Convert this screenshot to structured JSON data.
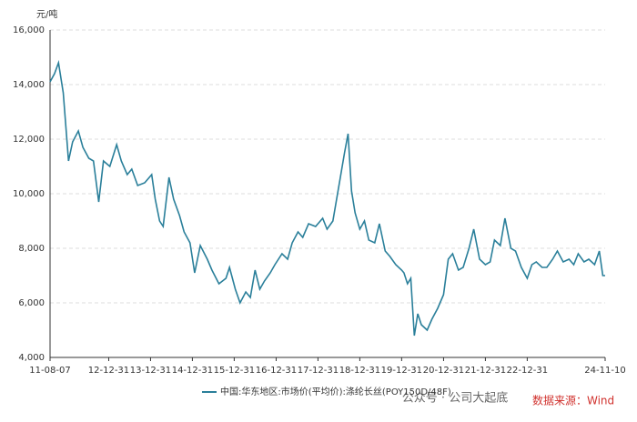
{
  "chart_data": {
    "type": "line",
    "y_axis_label": "元/吨",
    "xlim": [
      "11-08-07",
      "24-11-10"
    ],
    "xticks": [
      "11-08-07",
      "12-12-31",
      "13-12-31",
      "14-12-31",
      "15-12-31",
      "16-12-31",
      "17-12-31",
      "18-12-31",
      "19-12-31",
      "20-12-31",
      "21-12-31",
      "22-12-31",
      "24-11-10"
    ],
    "ylim": [
      4000,
      16000
    ],
    "yticks": [
      {
        "value": 4000,
        "label": "4,000"
      },
      {
        "value": 6000,
        "label": "6,000"
      },
      {
        "value": 8000,
        "label": "8,000"
      },
      {
        "value": 10000,
        "label": "10,000"
      },
      {
        "value": 12000,
        "label": "12,000"
      },
      {
        "value": 14000,
        "label": "14,000"
      },
      {
        "value": 16000,
        "label": "16,000"
      }
    ],
    "grid": true,
    "legend": "bottom",
    "x": [
      "11-08-07",
      "11-09-15",
      "11-10-20",
      "11-11-30",
      "12-01-15",
      "12-02-20",
      "12-04-10",
      "12-05-20",
      "12-07-10",
      "12-08-20",
      "12-10-05",
      "12-11-15",
      "13-01-10",
      "13-03-10",
      "13-04-20",
      "13-06-10",
      "13-07-20",
      "13-09-10",
      "13-11-10",
      "14-01-10",
      "14-02-10",
      "14-03-20",
      "14-04-20",
      "14-06-10",
      "14-07-20",
      "14-09-10",
      "14-10-20",
      "14-12-10",
      "15-01-20",
      "15-03-10",
      "15-05-10",
      "15-06-20",
      "15-08-20",
      "15-10-20",
      "15-11-20",
      "16-01-10",
      "16-02-20",
      "16-04-10",
      "16-05-20",
      "16-06-30",
      "16-08-10",
      "16-09-20",
      "16-11-10",
      "16-12-20",
      "17-02-20",
      "17-04-10",
      "17-05-20",
      "17-07-10",
      "17-08-20",
      "17-10-10",
      "17-12-10",
      "18-02-10",
      "18-03-20",
      "18-05-10",
      "18-07-10",
      "18-08-20",
      "18-09-20",
      "18-10-20",
      "18-11-20",
      "18-12-31",
      "19-02-10",
      "19-03-20",
      "19-05-10",
      "19-06-20",
      "19-08-10",
      "19-09-20",
      "19-11-10",
      "19-12-31",
      "20-01-20",
      "20-02-20",
      "20-03-20",
      "20-04-20",
      "20-05-20",
      "20-06-20",
      "20-08-10",
      "20-09-20",
      "20-11-10",
      "20-12-31",
      "21-02-10",
      "21-03-20",
      "21-05-10",
      "21-06-20",
      "21-08-10",
      "21-09-20",
      "21-11-10",
      "21-12-31",
      "22-02-10",
      "22-03-20",
      "22-05-10",
      "22-06-20",
      "22-08-10",
      "22-09-20",
      "22-11-10",
      "22-12-31",
      "23-02-10",
      "23-03-20",
      "23-05-10",
      "23-06-20",
      "23-08-10",
      "23-09-20",
      "23-11-10",
      "23-12-31",
      "24-02-10",
      "24-03-20",
      "24-05-10",
      "24-06-20",
      "24-08-10",
      "24-09-20",
      "24-10-20",
      "24-11-10"
    ],
    "series": [
      {
        "name": "中国:华东地区:市场价(平均价):涤纶长丝(POY150D/48F)",
        "color": "#2a7f9a",
        "values": [
          14100,
          14400,
          14800,
          13700,
          11200,
          11900,
          12300,
          11700,
          11300,
          11200,
          9700,
          11200,
          11000,
          11800,
          11200,
          10700,
          10900,
          10300,
          10400,
          10700,
          9800,
          9000,
          8800,
          10600,
          9800,
          9200,
          8600,
          8200,
          7100,
          8100,
          7600,
          7200,
          6700,
          6900,
          7300,
          6500,
          6000,
          6400,
          6200,
          7200,
          6500,
          6800,
          7100,
          7400,
          7800,
          7600,
          8200,
          8600,
          8400,
          8900,
          8800,
          9100,
          8700,
          9000,
          10500,
          11500,
          12200,
          10100,
          9300,
          8700,
          9000,
          8300,
          8200,
          8900,
          7900,
          7700,
          7400,
          7200,
          7100,
          6700,
          6900,
          4800,
          5600,
          5200,
          5000,
          5400,
          5800,
          6300,
          7600,
          7800,
          7200,
          7300,
          8000,
          8700,
          7600,
          7400,
          7500,
          8300,
          8100,
          9100,
          8000,
          7900,
          7300,
          6900,
          7400,
          7500,
          7300,
          7300,
          7600,
          7900,
          7500,
          7600,
          7400,
          7800,
          7500,
          7600,
          7400,
          7900,
          7000,
          7000
        ]
      }
    ],
    "watermark": "公众号 · 公司大起底",
    "source": "数据来源：Wind"
  }
}
